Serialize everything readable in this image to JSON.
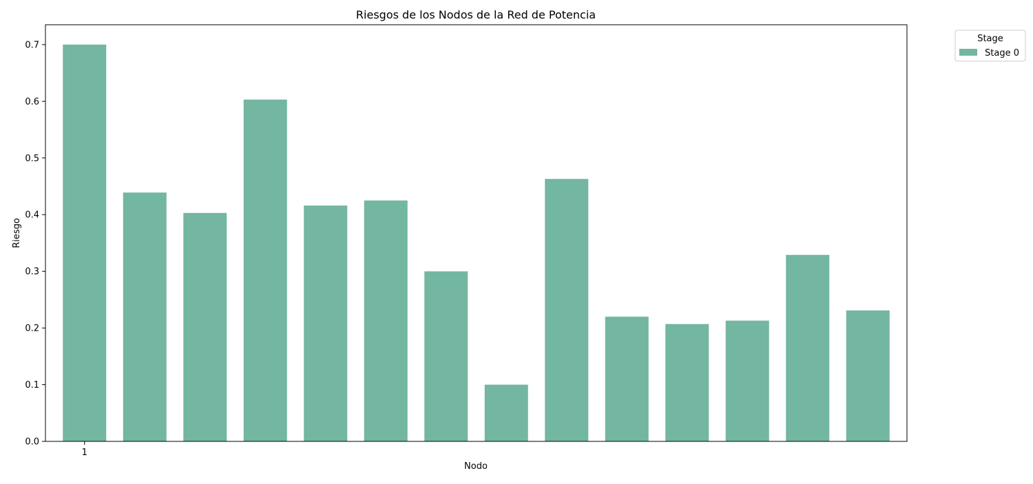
{
  "chart_data": {
    "type": "bar",
    "title": "Riesgos de los Nodos de la Red de Potencia",
    "xlabel": "Nodo",
    "ylabel": "Riesgo",
    "categories": [
      "1",
      "",
      "",
      "",
      "",
      "",
      "",
      "",
      "",
      "",
      "",
      "",
      "",
      ""
    ],
    "series": [
      {
        "name": "Stage 0",
        "color": "#73b6a1",
        "values": [
          0.7,
          0.439,
          0.403,
          0.603,
          0.416,
          0.425,
          0.3,
          0.1,
          0.463,
          0.22,
          0.207,
          0.213,
          0.329,
          0.231
        ]
      }
    ],
    "ylim": [
      0,
      0.735
    ],
    "yticks": [
      "0.0",
      "0.1",
      "0.2",
      "0.3",
      "0.4",
      "0.5",
      "0.6",
      "0.7"
    ],
    "legend": {
      "title": "Stage",
      "placement": "outside-top-right"
    },
    "grid": false
  }
}
